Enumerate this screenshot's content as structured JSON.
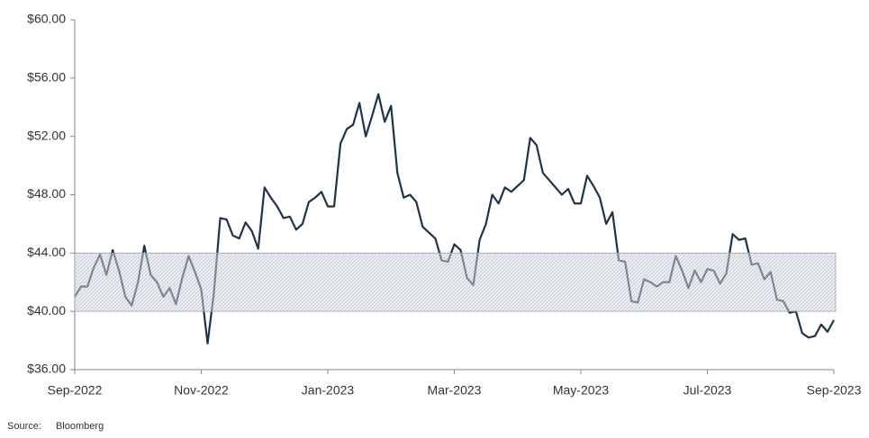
{
  "chart_data": {
    "type": "line",
    "categories": [
      "Sep-2022",
      null,
      null,
      null,
      null,
      null,
      null,
      null,
      null,
      null,
      null,
      null,
      null,
      null,
      null,
      null,
      null,
      null,
      null,
      null,
      "Nov-2022",
      null,
      null,
      null,
      null,
      null,
      null,
      null,
      null,
      null,
      null,
      null,
      null,
      null,
      null,
      null,
      null,
      null,
      null,
      null,
      "Jan-2023",
      null,
      null,
      null,
      null,
      null,
      null,
      null,
      null,
      null,
      null,
      null,
      null,
      null,
      null,
      null,
      null,
      null,
      null,
      null,
      "Mar-2023",
      null,
      null,
      null,
      null,
      null,
      null,
      null,
      null,
      null,
      null,
      null,
      null,
      null,
      null,
      null,
      null,
      null,
      null,
      null,
      "May-2023",
      null,
      null,
      null,
      null,
      null,
      null,
      null,
      null,
      null,
      null,
      null,
      null,
      null,
      null,
      null,
      null,
      null,
      null,
      null,
      "Jul-2023",
      null,
      null,
      null,
      null,
      null,
      null,
      null,
      null,
      null,
      null,
      null,
      null,
      null,
      null,
      null,
      null,
      null,
      null,
      null,
      "Sep-2023"
    ],
    "values": [
      41.0,
      41.7,
      41.7,
      43.0,
      43.9,
      42.5,
      44.2,
      42.8,
      41.0,
      40.4,
      42.0,
      44.5,
      42.5,
      42.0,
      41.0,
      41.6,
      40.5,
      42.3,
      43.8,
      42.7,
      41.5,
      37.8,
      41.3,
      46.4,
      46.3,
      45.2,
      45.0,
      46.1,
      45.5,
      44.3,
      48.5,
      47.8,
      47.2,
      46.4,
      46.5,
      45.6,
      46.0,
      47.5,
      47.8,
      48.2,
      47.2,
      47.2,
      51.5,
      52.5,
      52.8,
      54.3,
      52.0,
      53.4,
      54.9,
      53.0,
      54.1,
      49.5,
      47.8,
      48.0,
      47.5,
      45.8,
      45.4,
      45.0,
      43.5,
      43.4,
      44.6,
      44.2,
      42.3,
      41.8,
      44.9,
      46.0,
      48.0,
      47.4,
      48.5,
      48.2,
      48.6,
      49.0,
      51.9,
      51.4,
      49.5,
      49.0,
      48.5,
      48.0,
      48.4,
      47.4,
      47.4,
      49.3,
      48.6,
      47.8,
      46.0,
      46.8,
      43.5,
      43.4,
      40.7,
      40.6,
      42.2,
      42.0,
      41.7,
      42.0,
      42.0,
      43.8,
      42.8,
      41.6,
      42.8,
      42.0,
      42.9,
      42.8,
      41.9,
      42.6,
      45.3,
      44.9,
      45.0,
      43.2,
      43.3,
      42.2,
      42.7,
      40.8,
      40.7,
      39.9,
      40.0,
      38.5,
      38.2,
      38.3,
      39.1,
      38.6,
      39.4
    ],
    "color": "#1f3349",
    "band": [
      40,
      44
    ],
    "band_color": "#9aa3b3",
    "ylim": [
      36,
      60
    ],
    "yticks": [
      {
        "value": 36,
        "label": "$36.00"
      },
      {
        "value": 40,
        "label": "$40.00"
      },
      {
        "value": 44,
        "label": "$44.00"
      },
      {
        "value": 48,
        "label": "$48.00"
      },
      {
        "value": 52,
        "label": "$52.00"
      },
      {
        "value": 56,
        "label": "$56.00"
      },
      {
        "value": 60,
        "label": "$60.00"
      }
    ],
    "source_label": "Source:",
    "source": "Bloomberg"
  }
}
